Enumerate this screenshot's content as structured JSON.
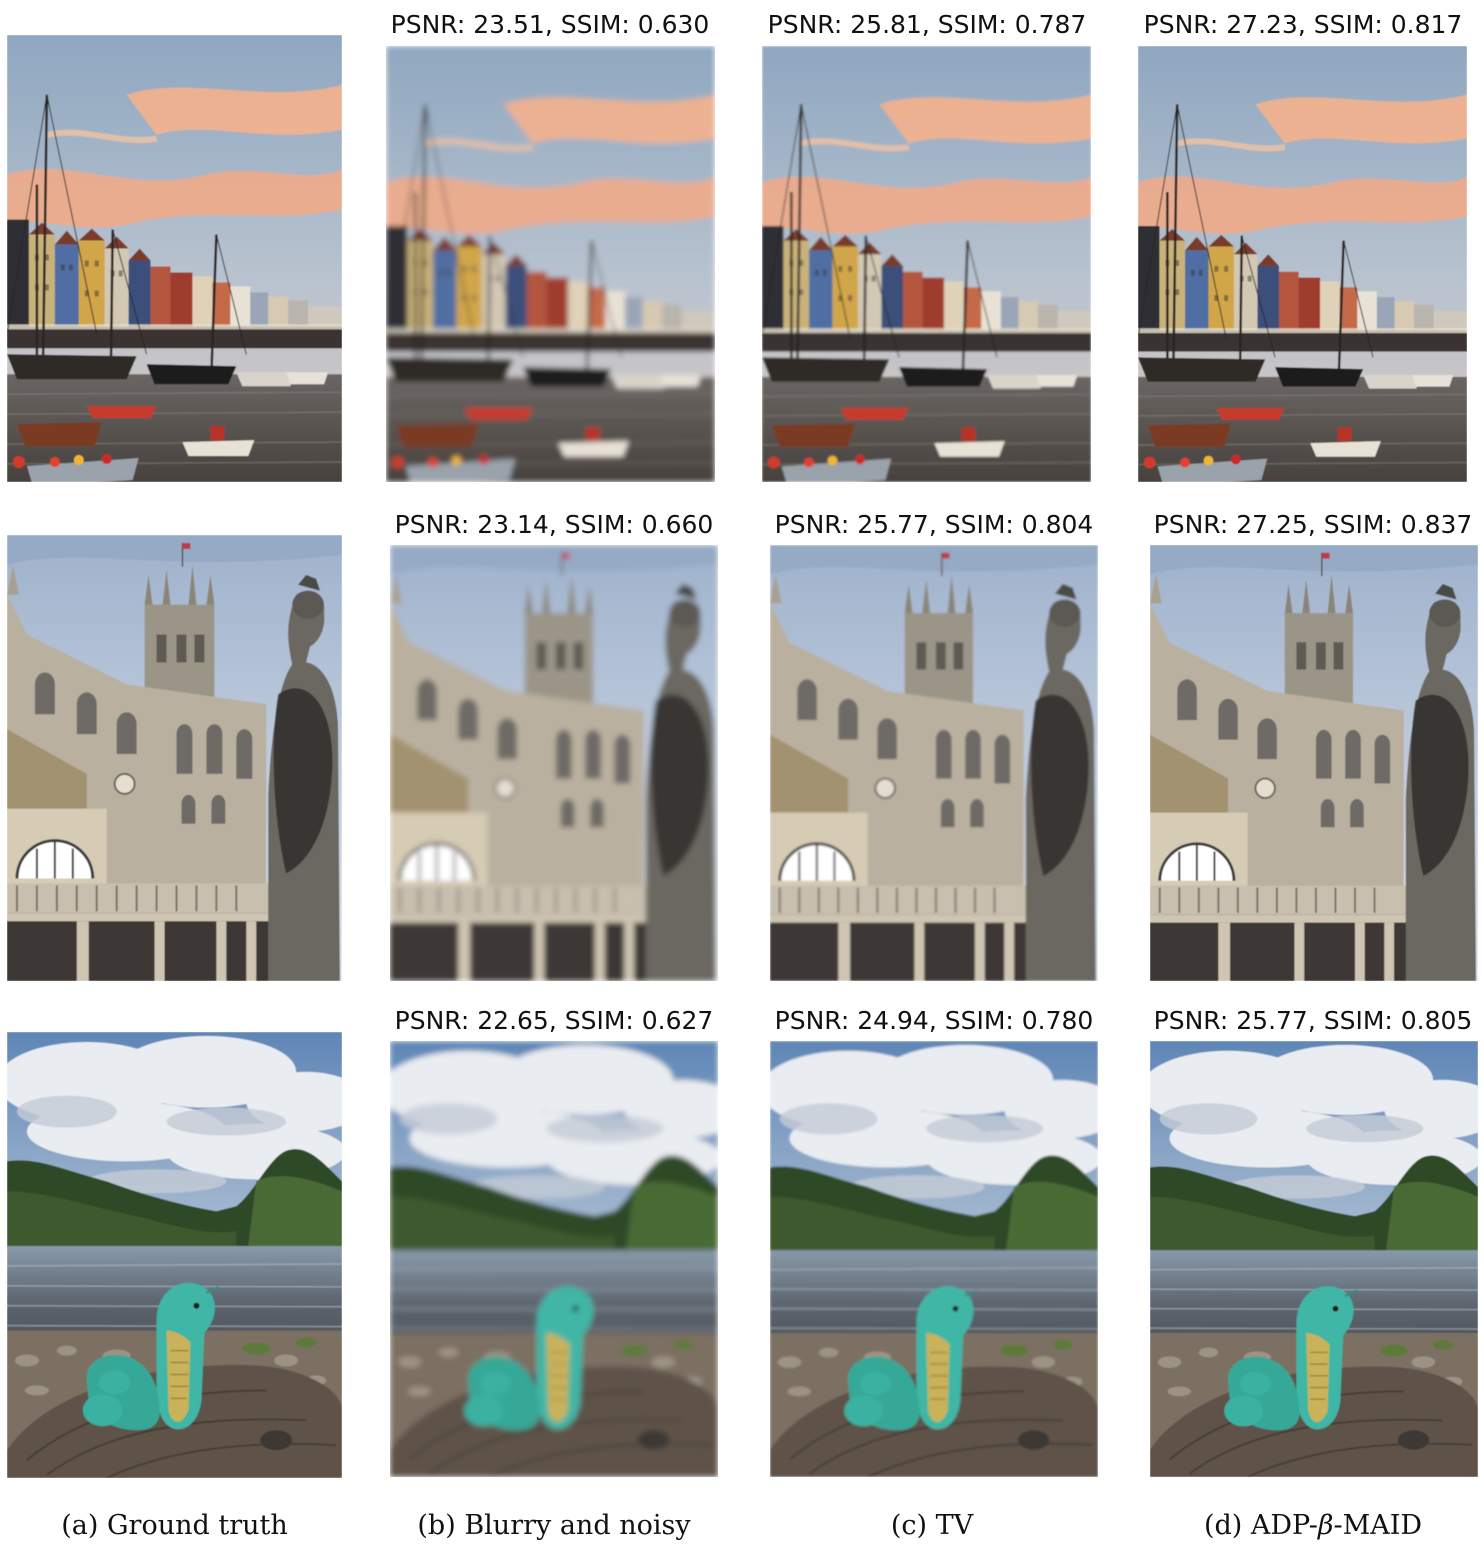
{
  "rows": [
    {
      "scene": "harbor",
      "metrics": [
        "PSNR: 23.51, SSIM: 0.630",
        "PSNR: 25.81, SSIM: 0.787",
        "PSNR: 27.23, SSIM: 0.817"
      ]
    },
    {
      "scene": "abbey",
      "metrics": [
        "PSNR: 23.14, SSIM: 0.660",
        "PSNR: 25.77, SSIM: 0.804",
        "PSNR: 27.25, SSIM: 0.837"
      ]
    },
    {
      "scene": "river",
      "metrics": [
        "PSNR: 22.65, SSIM: 0.627",
        "PSNR: 24.94, SSIM: 0.780",
        "PSNR: 25.77, SSIM: 0.805"
      ]
    }
  ],
  "captions": {
    "a": "(a) Ground truth",
    "b": "(b) Blurry and noisy",
    "c": "(c) TV",
    "d_prefix": "(d) ADP-",
    "d_symbol": "β",
    "d_suffix": "-MAID"
  },
  "colors": {
    "sky_blue": "#9fb6cc",
    "sunset_orange": "#f3b088",
    "stone": "#b8ad9c",
    "water": "#6e6a66",
    "toy_teal": "#3fb6a6",
    "foliage": "#3d5a2c"
  }
}
